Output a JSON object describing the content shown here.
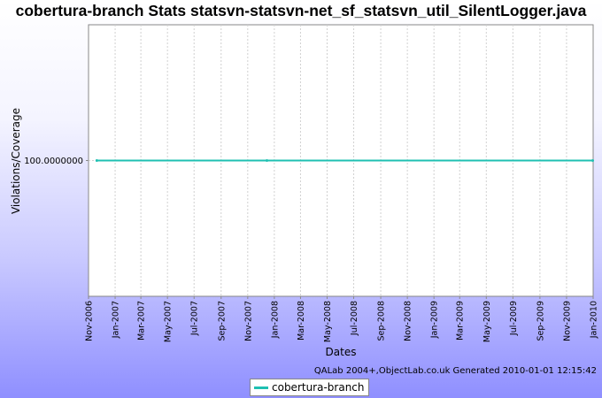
{
  "chart_data": {
    "type": "line",
    "title": "cobertura-branch  Stats statsvn-statsvn-net_sf_statsvn_util_SilentLogger.java",
    "xlabel": "Dates",
    "ylabel": "Violations/Coverage",
    "x_range": [
      "2006-11-01",
      "2010-01-01"
    ],
    "x_ticks": [
      "Nov-2006",
      "Jan-2007",
      "Mar-2007",
      "May-2007",
      "Jul-2007",
      "Sep-2007",
      "Nov-2007",
      "Jan-2008",
      "Mar-2008",
      "May-2008",
      "Jul-2008",
      "Sep-2008",
      "Nov-2008",
      "Jan-2009",
      "Mar-2009",
      "May-2009",
      "Jul-2009",
      "Sep-2009",
      "Nov-2009",
      "Jan-2010"
    ],
    "y_ticks": [
      "100.0000000"
    ],
    "ylim": [
      99.5,
      100.5
    ],
    "grid": true,
    "legend_position": "bottom",
    "series": [
      {
        "name": "cobertura-branch",
        "color": "#1fc0b2",
        "points": [
          {
            "x": "2006-11-20",
            "y": 100
          },
          {
            "x": "2007-12-15",
            "y": 100
          },
          {
            "x": "2009-12-31",
            "y": 100
          }
        ]
      }
    ]
  },
  "credit": "QALab 2004+,ObjectLab.co.uk  Generated 2010-01-01 12:15:42"
}
